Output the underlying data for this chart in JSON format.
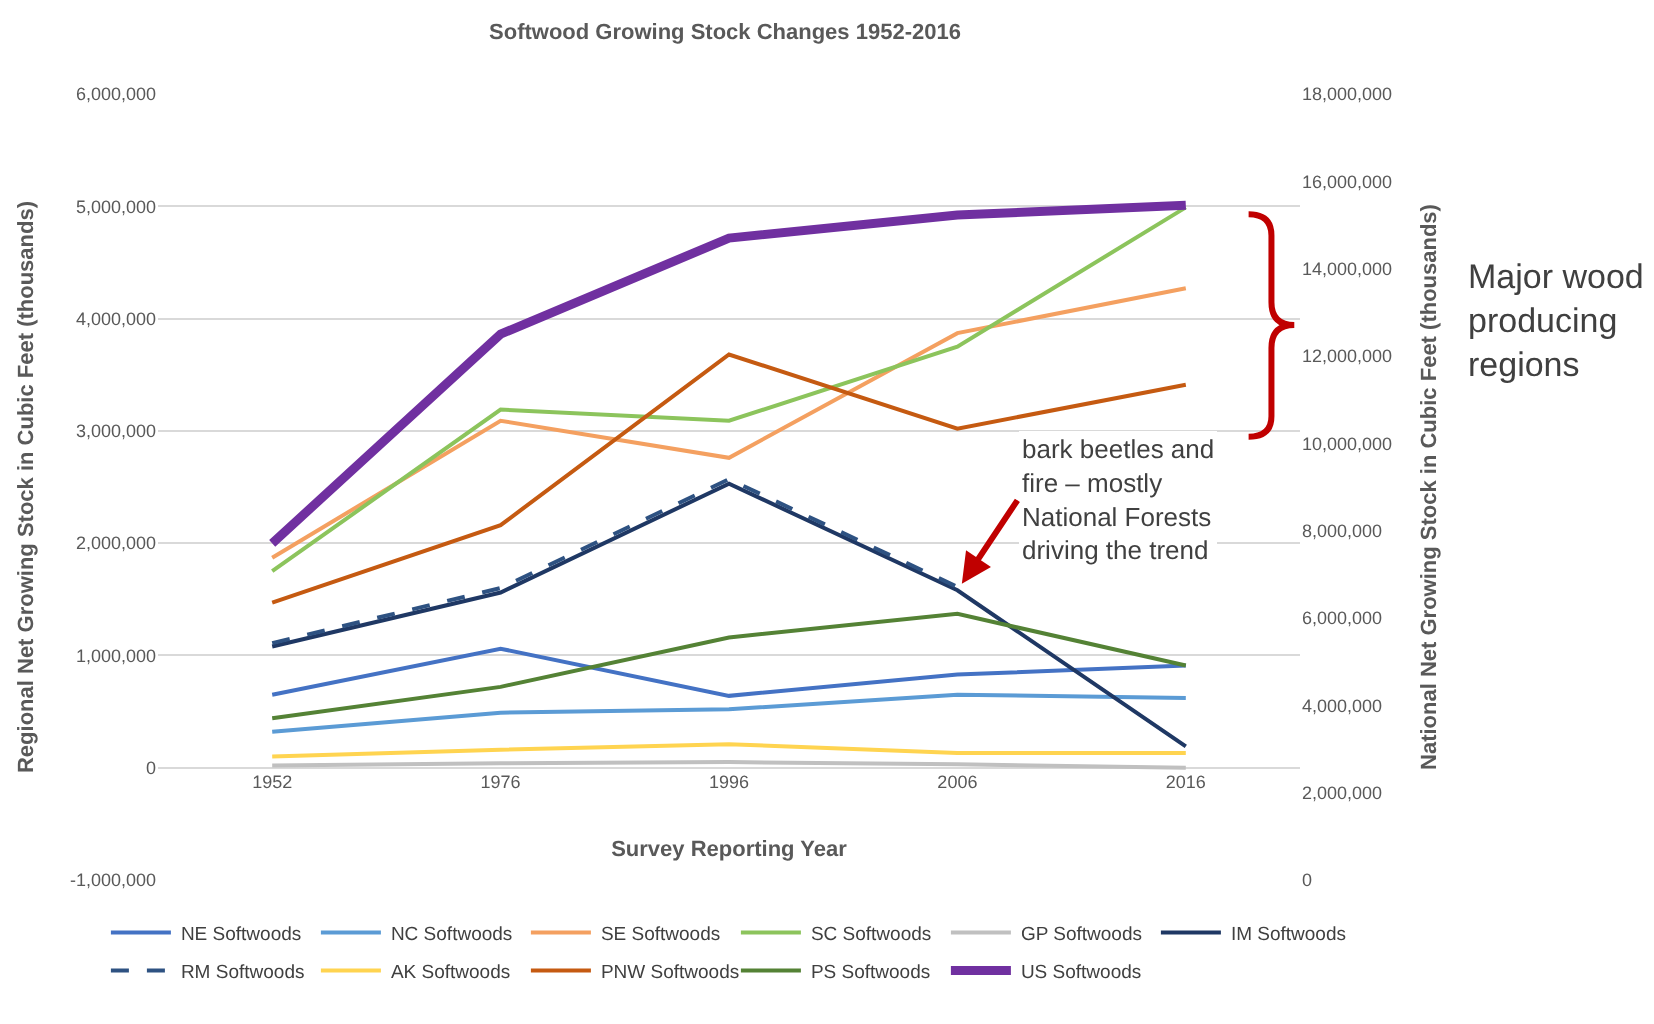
{
  "chart_data": {
    "type": "line",
    "title": "Softwood Growing Stock Changes 1952-2016",
    "xlabel": "Survey Reporting Year",
    "ylabel": "Regional Net Growing Stock in Cubic Feet (thousands)",
    "y2label": "National Net Growing Stock in Cubic Feet (thousands)",
    "categories": [
      "1952",
      "1976",
      "1996",
      "2006",
      "2016"
    ],
    "series": [
      {
        "name": "NE Softwoods",
        "color": "#4472c4",
        "values": [
          650000,
          1060000,
          640000,
          830000,
          910000
        ]
      },
      {
        "name": "NC Softwoods",
        "color": "#5b9bd5",
        "values": [
          320000,
          490000,
          520000,
          650000,
          620000
        ]
      },
      {
        "name": "SE Softwoods",
        "color": "#f4a060",
        "values": [
          1870000,
          3090000,
          2760000,
          3870000,
          4270000
        ]
      },
      {
        "name": "SC Softwoods",
        "color": "#8cc45c",
        "values": [
          1750000,
          3190000,
          3090000,
          3750000,
          4990000
        ]
      },
      {
        "name": "GP Softwoods",
        "color": "#c0c0c0",
        "values": [
          20000,
          40000,
          50000,
          30000,
          0
        ]
      },
      {
        "name": "IM Softwoods",
        "color": "#1f3864",
        "values": [
          1080000,
          1560000,
          2530000,
          1580000,
          190000
        ]
      },
      {
        "name": "RM Softwoods",
        "color": "#2e5282",
        "line_style": "dashed",
        "values": [
          1110000,
          1600000,
          2570000,
          1610000,
          null
        ]
      },
      {
        "name": "AK Softwoods",
        "color": "#ffd450",
        "values": [
          100000,
          160000,
          210000,
          130000,
          130000
        ]
      },
      {
        "name": "PNW Softwoods",
        "color": "#c55a11",
        "values": [
          1470000,
          2160000,
          3680000,
          3020000,
          3410000
        ]
      },
      {
        "name": "PS Softwoods",
        "color": "#548235",
        "values": [
          440000,
          720000,
          1160000,
          1370000,
          910000
        ]
      },
      {
        "name": "US Softwoods",
        "color": "#7030a0",
        "axis": "y2",
        "values": [
          7710000,
          12500000,
          14700000,
          15230000,
          15450000
        ]
      }
    ],
    "ylim": [
      -1000000,
      6000000
    ],
    "yticks": [
      {
        "value": -1000000,
        "label": "-1,000,000"
      },
      0,
      {
        "value": 1000000,
        "label": "1,000,000"
      },
      {
        "value": 2000000,
        "label": "2,000,000"
      },
      {
        "value": 3000000,
        "label": "3,000,000"
      },
      {
        "value": 4000000,
        "label": "4,000,000"
      },
      {
        "value": 5000000,
        "label": "5,000,000"
      },
      {
        "value": 6000000,
        "label": "6,000,000"
      }
    ],
    "y2lim": [
      0,
      18000000
    ],
    "y2ticks": [
      0,
      {
        "value": 2000000,
        "label": "2,000,000"
      },
      {
        "value": 4000000,
        "label": "4,000,000"
      },
      {
        "value": 6000000,
        "label": "6,000,000"
      },
      {
        "value": 8000000,
        "label": "8,000,000"
      },
      {
        "value": 10000000,
        "label": "10,000,000"
      },
      {
        "value": 12000000,
        "label": "12,000,000"
      },
      {
        "value": 14000000,
        "label": "14,000,000"
      },
      {
        "value": 16000000,
        "label": "16,000,000"
      },
      {
        "value": 18000000,
        "label": "18,000,000"
      }
    ],
    "grid": "y",
    "legend": "bottom",
    "marker": "none",
    "annotations": [
      "Major wood producing regions",
      {
        "text": "bark beetles and fire – mostly National Forests driving the trend",
        "x": "2006",
        "y": 1580000
      }
    ]
  }
}
